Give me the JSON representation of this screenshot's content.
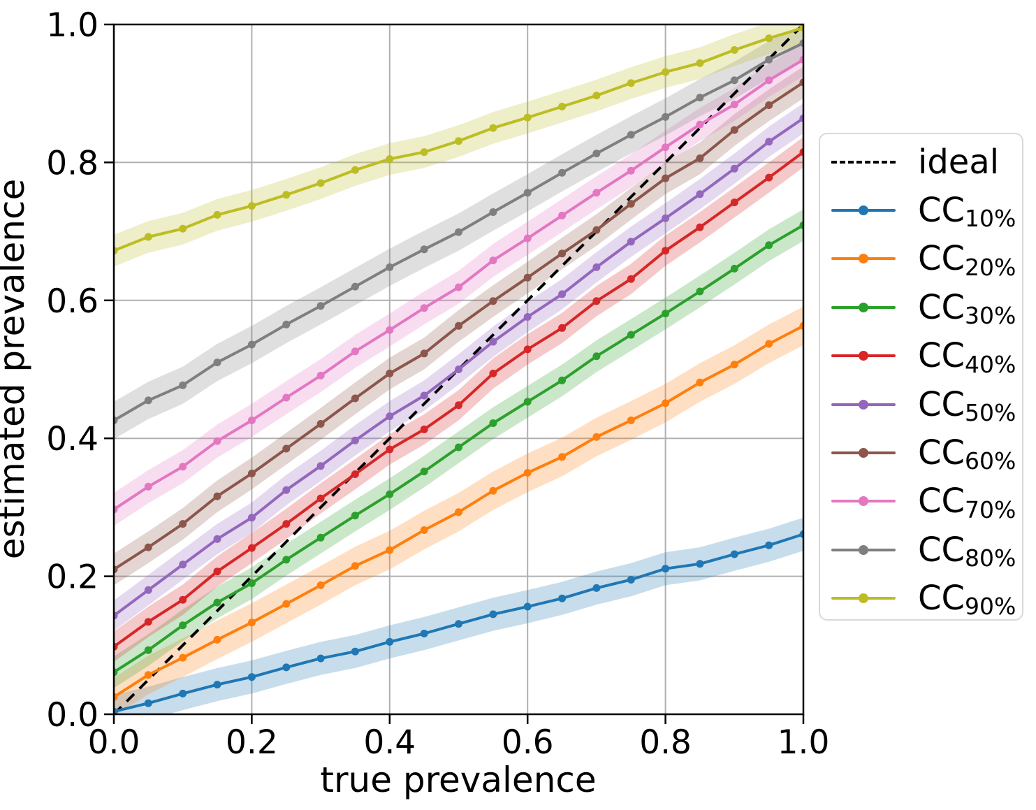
{
  "chart_data": {
    "type": "line",
    "title": "",
    "xlabel": "true prevalence",
    "ylabel": "estimated prevalence",
    "xlim": [
      0.0,
      1.0
    ],
    "ylim": [
      0.0,
      1.0
    ],
    "grid": true,
    "legend_position": "right outside",
    "xtick_labels": [
      "0.0",
      "0.2",
      "0.4",
      "0.6",
      "0.8",
      "1.0"
    ],
    "ytick_labels": [
      "0.0",
      "0.2",
      "0.4",
      "0.6",
      "0.8",
      "1.0"
    ],
    "xticks": [
      0.0,
      0.2,
      0.4,
      0.6,
      0.8,
      1.0
    ],
    "yticks": [
      0.0,
      0.2,
      0.4,
      0.6,
      0.8,
      1.0
    ],
    "x": [
      0.0,
      0.05,
      0.1,
      0.15,
      0.2,
      0.25,
      0.3,
      0.35,
      0.4,
      0.45,
      0.5,
      0.55,
      0.6,
      0.65,
      0.7,
      0.75,
      0.8,
      0.85,
      0.9,
      0.95,
      1.0
    ],
    "ideal": {
      "label": "ideal",
      "color": "#000000",
      "style": "dashed",
      "x": [
        0.0,
        1.0
      ],
      "y": [
        0.0,
        1.0
      ]
    },
    "series": [
      {
        "label_main": "CC",
        "label_sub": "10%",
        "color": "#1f77b4",
        "band_halfwidth": 0.024,
        "values": [
          0.004,
          0.016,
          0.03,
          0.043,
          0.054,
          0.068,
          0.081,
          0.091,
          0.105,
          0.117,
          0.131,
          0.145,
          0.156,
          0.168,
          0.183,
          0.195,
          0.211,
          0.218,
          0.232,
          0.245,
          0.261
        ]
      },
      {
        "label_main": "CC",
        "label_sub": "20%",
        "color": "#ff7f0e",
        "band_halfwidth": 0.028,
        "values": [
          0.025,
          0.057,
          0.082,
          0.108,
          0.133,
          0.16,
          0.187,
          0.215,
          0.238,
          0.267,
          0.293,
          0.324,
          0.35,
          0.373,
          0.402,
          0.426,
          0.451,
          0.481,
          0.507,
          0.537,
          0.563
        ]
      },
      {
        "label_main": "CC",
        "label_sub": "30%",
        "color": "#2ca02c",
        "band_halfwidth": 0.023,
        "values": [
          0.061,
          0.093,
          0.129,
          0.162,
          0.19,
          0.224,
          0.256,
          0.288,
          0.319,
          0.352,
          0.387,
          0.422,
          0.453,
          0.484,
          0.519,
          0.55,
          0.581,
          0.613,
          0.646,
          0.68,
          0.709
        ]
      },
      {
        "label_main": "CC",
        "label_sub": "40%",
        "color": "#d62728",
        "band_halfwidth": 0.022,
        "values": [
          0.098,
          0.134,
          0.166,
          0.207,
          0.241,
          0.276,
          0.313,
          0.348,
          0.384,
          0.413,
          0.448,
          0.494,
          0.529,
          0.56,
          0.599,
          0.631,
          0.672,
          0.706,
          0.742,
          0.778,
          0.815
        ]
      },
      {
        "label_main": "CC",
        "label_sub": "50%",
        "color": "#9467bd",
        "band_halfwidth": 0.022,
        "values": [
          0.143,
          0.18,
          0.217,
          0.254,
          0.285,
          0.325,
          0.36,
          0.397,
          0.432,
          0.462,
          0.5,
          0.54,
          0.576,
          0.609,
          0.648,
          0.685,
          0.719,
          0.754,
          0.791,
          0.83,
          0.864
        ]
      },
      {
        "label_main": "CC",
        "label_sub": "60%",
        "color": "#8c564b",
        "band_halfwidth": 0.023,
        "values": [
          0.21,
          0.242,
          0.276,
          0.316,
          0.349,
          0.385,
          0.421,
          0.458,
          0.494,
          0.523,
          0.563,
          0.599,
          0.633,
          0.668,
          0.702,
          0.74,
          0.777,
          0.806,
          0.847,
          0.883,
          0.916
        ]
      },
      {
        "label_main": "CC",
        "label_sub": "70%",
        "color": "#e377c2",
        "band_halfwidth": 0.024,
        "values": [
          0.297,
          0.33,
          0.359,
          0.396,
          0.426,
          0.459,
          0.491,
          0.526,
          0.557,
          0.589,
          0.619,
          0.658,
          0.69,
          0.723,
          0.756,
          0.788,
          0.822,
          0.855,
          0.884,
          0.919,
          0.949
        ]
      },
      {
        "label_main": "CC",
        "label_sub": "80%",
        "color": "#7f7f7f",
        "band_halfwidth": 0.027,
        "values": [
          0.426,
          0.455,
          0.477,
          0.51,
          0.536,
          0.565,
          0.592,
          0.62,
          0.648,
          0.674,
          0.699,
          0.728,
          0.756,
          0.785,
          0.813,
          0.84,
          0.866,
          0.894,
          0.919,
          0.949,
          0.973
        ]
      },
      {
        "label_main": "CC",
        "label_sub": "90%",
        "color": "#bcbd22",
        "band_halfwidth": 0.023,
        "values": [
          0.672,
          0.692,
          0.704,
          0.724,
          0.737,
          0.753,
          0.77,
          0.789,
          0.805,
          0.815,
          0.831,
          0.85,
          0.865,
          0.881,
          0.897,
          0.915,
          0.931,
          0.944,
          0.963,
          0.98,
          0.995
        ]
      }
    ],
    "style": {
      "grid_color": "#b0b0b0",
      "spine_color": "#000000",
      "band_opacity": 0.25,
      "background": "#ffffff"
    }
  }
}
